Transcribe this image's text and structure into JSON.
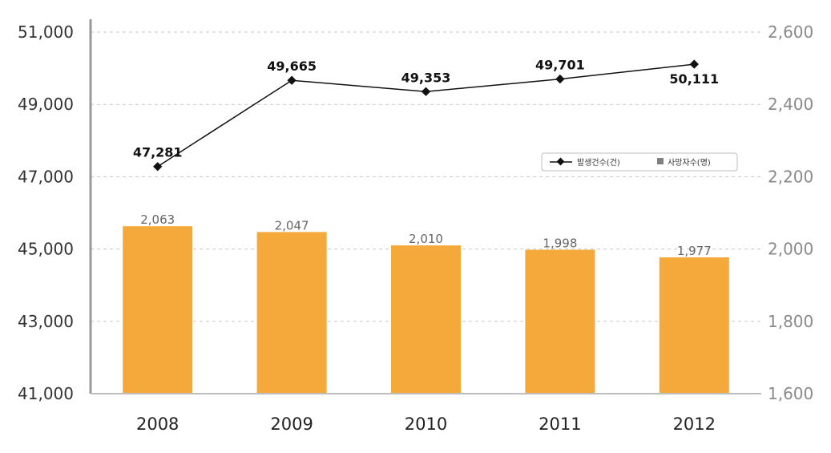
{
  "chart_data": {
    "type": "bar+line",
    "categories": [
      "2008",
      "2009",
      "2010",
      "2011",
      "2012"
    ],
    "series": [
      {
        "name": "발생건수(건)",
        "type": "line",
        "axis": "left",
        "values": [
          47281,
          49665,
          49353,
          49701,
          50111
        ],
        "labels": [
          "47,281",
          "49,665",
          "49,353",
          "49,701",
          "50,111"
        ],
        "color": "#111111"
      },
      {
        "name": "사망자수(명)",
        "type": "bar",
        "axis": "right",
        "values": [
          2063,
          2047,
          2010,
          1998,
          1977
        ],
        "labels": [
          "2,063",
          "2,047",
          "2,010",
          "1,998",
          "1,977"
        ],
        "color": "#F5A93A"
      }
    ],
    "y_left": {
      "range": [
        41000,
        51000
      ],
      "ticks": [
        "41,000",
        "43,000",
        "45,000",
        "47,000",
        "49,000",
        "51,000"
      ]
    },
    "y_right": {
      "range": [
        1600,
        2600
      ],
      "ticks": [
        "1,600",
        "1,800",
        "2,000",
        "2,200",
        "2,400",
        "2,600"
      ]
    },
    "grid": true,
    "legend": "right",
    "colors": {
      "bar": "#F5A93A",
      "line": "#111111",
      "grid": "#c8c8c8",
      "axis": "#999999",
      "legend_square": "#808080"
    }
  }
}
